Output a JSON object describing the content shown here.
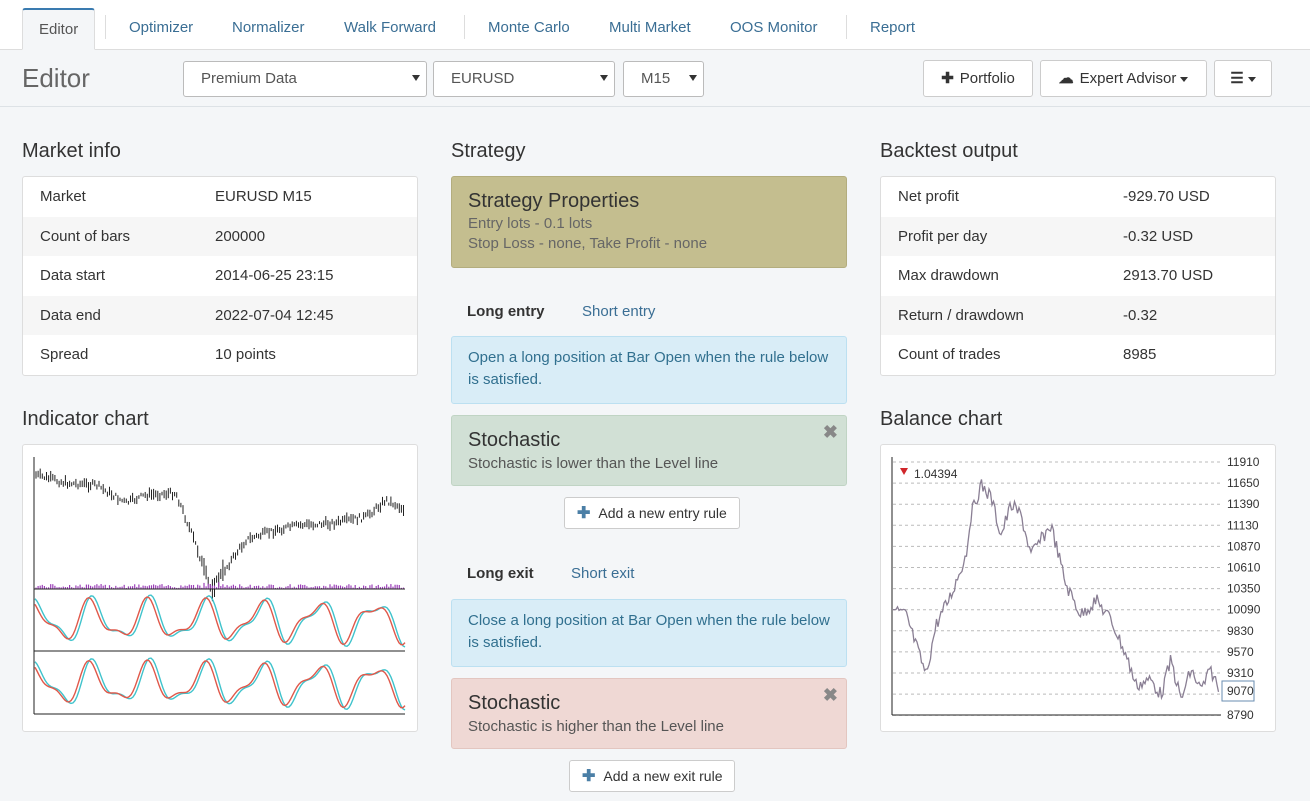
{
  "nav": {
    "tabs": [
      {
        "label": "Editor",
        "active": true
      },
      {
        "label": "Optimizer"
      },
      {
        "label": "Normalizer"
      },
      {
        "label": "Walk Forward"
      },
      {
        "label": "Monte Carlo"
      },
      {
        "label": "Multi Market"
      },
      {
        "label": "OOS Monitor"
      },
      {
        "label": "Report"
      }
    ]
  },
  "toolbar": {
    "title": "Editor",
    "data_source": "Premium Data",
    "symbol": "EURUSD",
    "period": "M15",
    "portfolio_label": "Portfolio",
    "portfolio_icon": "plus-icon",
    "ea_label": "Expert Advisor",
    "ea_icon": "cloud-download-icon",
    "menu_icon": "hamburger-icon"
  },
  "market_info": {
    "heading": "Market info",
    "rows": [
      {
        "key": "Market",
        "value": "EURUSD M15"
      },
      {
        "key": "Count of bars",
        "value": "200000"
      },
      {
        "key": "Data start",
        "value": "2014-06-25 23:15"
      },
      {
        "key": "Data end",
        "value": "2022-07-04 12:45"
      },
      {
        "key": "Spread",
        "value": "10 points"
      }
    ]
  },
  "strategy": {
    "heading": "Strategy",
    "properties": {
      "title": "Strategy Properties",
      "line1": "Entry lots - 0.1 lots",
      "line2": "Stop Loss - none, Take Profit - none"
    },
    "entry_tabs": {
      "long": "Long entry",
      "short": "Short entry"
    },
    "entry_info": "Open a long position at Bar Open when the rule below is satisfied.",
    "entry_rule": {
      "title": "Stochastic",
      "desc": "Stochastic is lower than the Level line"
    },
    "add_entry": "Add a new entry rule",
    "exit_tabs": {
      "long": "Long exit",
      "short": "Short exit"
    },
    "exit_info": "Close a long position at Bar Open when the rule below is satisfied.",
    "exit_rule": {
      "title": "Stochastic",
      "desc": "Stochastic is higher than the Level line"
    },
    "add_exit": "Add a new exit rule",
    "close_glyph": "✖"
  },
  "backtest": {
    "heading": "Backtest output",
    "rows": [
      {
        "key": "Net profit",
        "value": "-929.70 USD"
      },
      {
        "key": "Profit per day",
        "value": "-0.32 USD"
      },
      {
        "key": "Max drawdown",
        "value": "2913.70 USD"
      },
      {
        "key": "Return / drawdown",
        "value": "-0.32"
      },
      {
        "key": "Count of trades",
        "value": "8985"
      }
    ]
  },
  "indicator_chart": {
    "heading": "Indicator chart"
  },
  "balance_chart": {
    "heading": "Balance chart",
    "marker_value": "1.04394",
    "ticks": [
      "11910",
      "11650",
      "11390",
      "11130",
      "10870",
      "10610",
      "10350",
      "10090",
      "9830",
      "9570",
      "9310",
      "9070",
      "8790"
    ],
    "current": "9070"
  },
  "colors": {
    "accent": "#3a7bb0",
    "link": "#3a6e94",
    "price": "#222222",
    "volume": "#9b3fb8",
    "stoch_main": "#e0584a",
    "stoch_signal": "#3fc3cc",
    "balance": "#8a7f94"
  }
}
